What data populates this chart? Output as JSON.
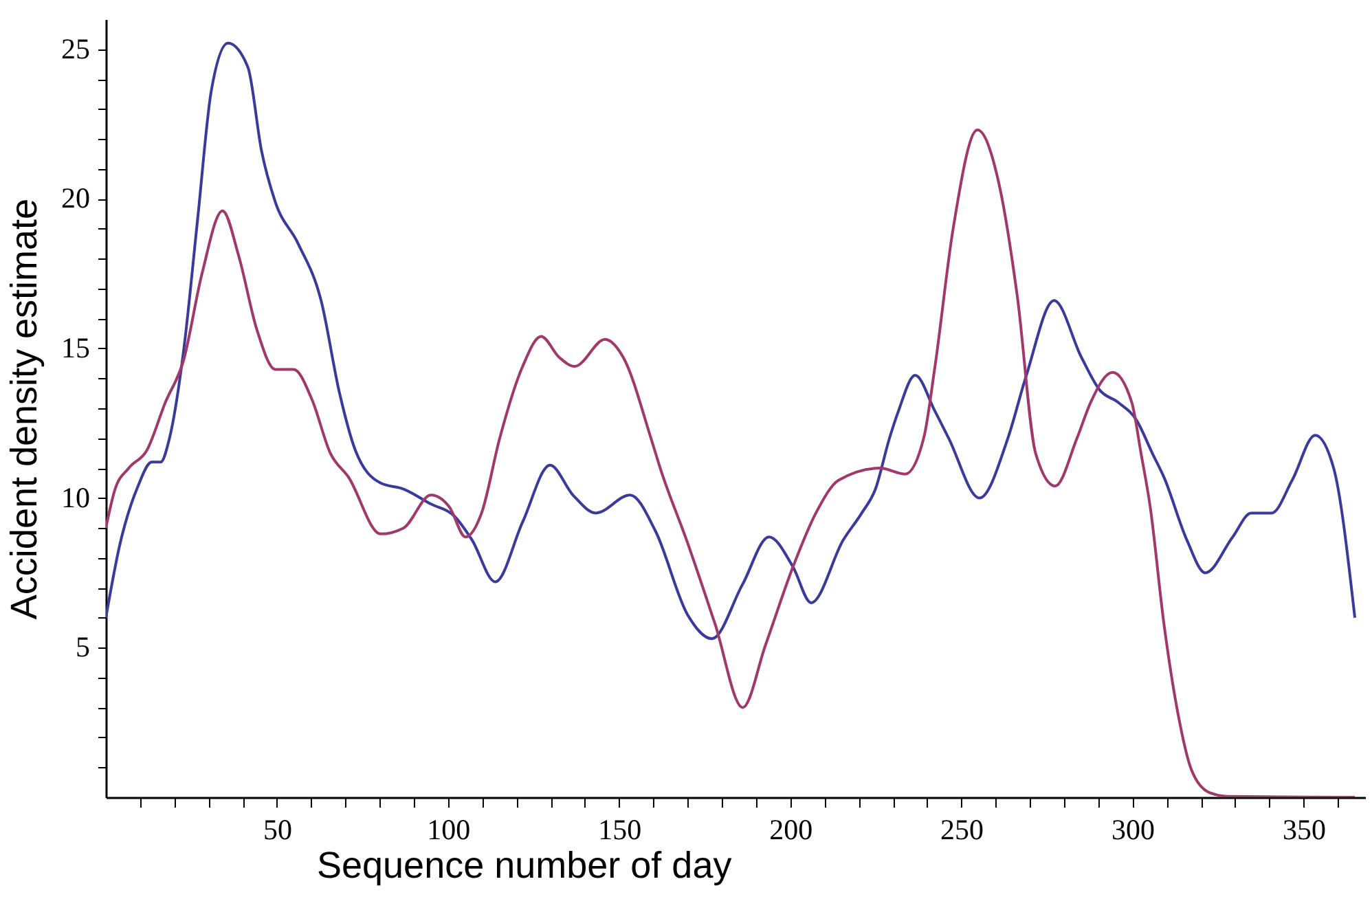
{
  "chart_data": {
    "type": "line",
    "xlabel": "Sequence number of day",
    "ylabel": "Accident density estimate",
    "xlim": [
      0,
      368
    ],
    "ylim": [
      0,
      26
    ],
    "xticks": [
      {
        "value": 10,
        "label": null
      },
      {
        "value": 20,
        "label": null
      },
      {
        "value": 30,
        "label": null
      },
      {
        "value": 40,
        "label": null
      },
      50,
      {
        "value": 60,
        "label": null
      },
      {
        "value": 70,
        "label": null
      },
      {
        "value": 80,
        "label": null
      },
      {
        "value": 90,
        "label": null
      },
      100,
      {
        "value": 110,
        "label": null
      },
      {
        "value": 120,
        "label": null
      },
      {
        "value": 130,
        "label": null
      },
      {
        "value": 140,
        "label": null
      },
      150,
      {
        "value": 160,
        "label": null
      },
      {
        "value": 170,
        "label": null
      },
      {
        "value": 180,
        "label": null
      },
      {
        "value": 190,
        "label": null
      },
      200,
      {
        "value": 210,
        "label": null
      },
      {
        "value": 220,
        "label": null
      },
      {
        "value": 230,
        "label": null
      },
      {
        "value": 240,
        "label": null
      },
      250,
      {
        "value": 260,
        "label": null
      },
      {
        "value": 270,
        "label": null
      },
      {
        "value": 280,
        "label": null
      },
      {
        "value": 290,
        "label": null
      },
      300,
      {
        "value": 310,
        "label": null
      },
      {
        "value": 320,
        "label": null
      },
      {
        "value": 330,
        "label": null
      },
      {
        "value": 340,
        "label": null
      },
      350,
      {
        "value": 360,
        "label": null
      }
    ],
    "yticks": [
      {
        "value": 1,
        "label": null
      },
      {
        "value": 2,
        "label": null
      },
      {
        "value": 3,
        "label": null
      },
      {
        "value": 4,
        "label": null
      },
      5,
      {
        "value": 6,
        "label": null
      },
      {
        "value": 7,
        "label": null
      },
      {
        "value": 8,
        "label": null
      },
      {
        "value": 9,
        "label": null
      },
      10,
      {
        "value": 11,
        "label": null
      },
      {
        "value": 12,
        "label": null
      },
      {
        "value": 13,
        "label": null
      },
      {
        "value": 14,
        "label": null
      },
      15,
      {
        "value": 16,
        "label": null
      },
      {
        "value": 17,
        "label": null
      },
      {
        "value": 18,
        "label": null
      },
      {
        "value": 19,
        "label": null
      },
      20,
      {
        "value": 21,
        "label": null
      },
      {
        "value": 22,
        "label": null
      },
      {
        "value": 23,
        "label": null
      },
      {
        "value": 24,
        "label": null
      },
      25
    ],
    "grid": false,
    "marker": "none",
    "line_style": "solid",
    "series": [
      {
        "color": "#3a3a9c",
        "x": [
          0,
          4,
          9.4,
          13.4,
          16,
          18.6,
          22.7,
          26.8,
          30.8,
          35.7,
          41.5,
          45.5,
          49.5,
          56.2,
          62.9,
          68.3,
          72.9,
          80.3,
          87,
          95,
          101.8,
          107,
          113.8,
          121.8,
          129.8,
          136.5,
          143.2,
          153.2,
          160.6,
          170,
          177.1,
          186,
          193.8,
          200.8,
          206.1,
          215.5,
          220.9,
          224.9,
          229,
          231.6,
          236.5,
          242.3,
          246.3,
          255.3,
          263.6,
          269,
          277.1,
          285.1,
          290.5,
          295.8,
          301.2,
          305.8,
          309.2,
          315.9,
          321.3,
          329.3,
          334.7,
          340.7,
          346.7,
          353.4,
          358.8,
          365
        ],
        "values": [
          6.0,
          8.4,
          10.4,
          11.2,
          11.2,
          12,
          14.9,
          19.3,
          23.6,
          25.2,
          24.4,
          21.6,
          19.9,
          18.5,
          16.6,
          13.5,
          11.6,
          10.5,
          10.3,
          9.8,
          9.4,
          8.6,
          7.2,
          9.2,
          11.1,
          10.1,
          9.5,
          10.1,
          8.9,
          6.1,
          5.3,
          7.1,
          8.7,
          7.7,
          6.5,
          8.6,
          9.5,
          10.3,
          12,
          12.9,
          14.1,
          12.9,
          12,
          10,
          12,
          14.1,
          16.6,
          14.7,
          13.6,
          13.2,
          12.6,
          11.5,
          10.7,
          8.6,
          7.5,
          8.7,
          9.5,
          9.5,
          10.6,
          12.1,
          11,
          6
        ]
      },
      {
        "color": "#a0386b",
        "x": [
          0,
          2.7,
          6.7,
          12,
          17.4,
          22.7,
          28.1,
          34.1,
          38.8,
          44.2,
          49.5,
          54.9,
          60.2,
          65.6,
          70.9,
          80.3,
          87,
          95,
          100.4,
          105.1,
          109.8,
          115.1,
          121.8,
          127.2,
          132.5,
          137,
          145.9,
          151.2,
          159.3,
          162,
          170,
          178,
          186.1,
          192.8,
          200.8,
          207.5,
          214.2,
          226.2,
          233.6,
          239,
          242.3,
          247.6,
          254.7,
          261,
          266.4,
          271.7,
          277.4,
          283.8,
          287.8,
          294.2,
          299.8,
          302.5,
          305.2,
          309.2,
          313.3,
          317.3,
          322.6,
          327.9,
          365
        ],
        "values": [
          9.0,
          10.3,
          11,
          11.6,
          13.2,
          14.6,
          17.5,
          19.6,
          18.1,
          15.6,
          14.3,
          14.3,
          13.3,
          11.5,
          10.7,
          8.8,
          9,
          10.1,
          9.7,
          8.7,
          9.5,
          12,
          14.4,
          15.4,
          14.7,
          14.4,
          15.3,
          14.7,
          12,
          11,
          8.5,
          5.8,
          3,
          5.1,
          7.7,
          9.5,
          10.6,
          11,
          10.8,
          12,
          14.4,
          19,
          22.3,
          20.5,
          16.7,
          11.5,
          10.4,
          12,
          13.2,
          14.2,
          13.2,
          11.5,
          9.7,
          5.8,
          2.8,
          0.9,
          0.15,
          0.03,
          0
        ]
      }
    ]
  }
}
